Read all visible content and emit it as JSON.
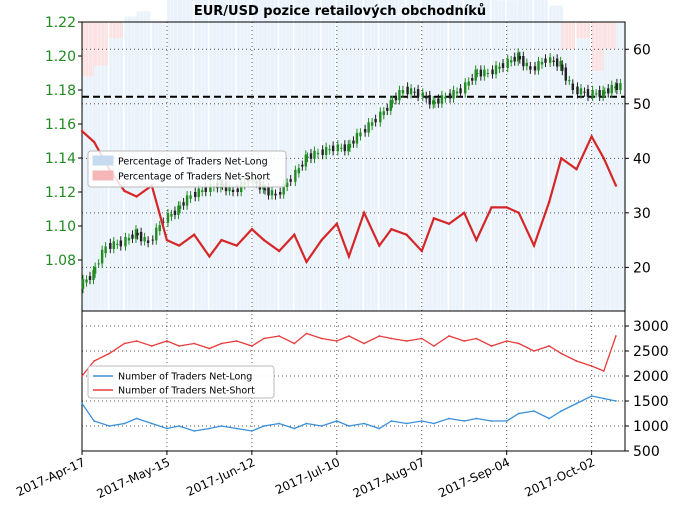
{
  "chart_data": [
    {
      "type": "line",
      "title": "EUR/USD pozice retailových obchodníků",
      "x_dates": [
        "2017-04-17",
        "2017-04-21",
        "2017-04-26",
        "2017-05-01",
        "2017-05-05",
        "2017-05-10",
        "2017-05-15",
        "2017-05-19",
        "2017-05-24",
        "2017-05-29",
        "2017-06-02",
        "2017-06-07",
        "2017-06-12",
        "2017-06-16",
        "2017-06-21",
        "2017-06-26",
        "2017-06-30",
        "2017-07-05",
        "2017-07-10",
        "2017-07-14",
        "2017-07-19",
        "2017-07-24",
        "2017-07-28",
        "2017-08-02",
        "2017-08-07",
        "2017-08-11",
        "2017-08-16",
        "2017-08-21",
        "2017-08-25",
        "2017-08-30",
        "2017-09-04",
        "2017-09-08",
        "2017-09-13",
        "2017-09-18",
        "2017-09-22",
        "2017-09-27",
        "2017-10-02",
        "2017-10-06",
        "2017-10-10"
      ],
      "x_tick_labels": [
        "2017-Apr-17",
        "2017-May-15",
        "2017-Jun-12",
        "2017-Jul-10",
        "2017-Aug-07",
        "2017-Sep-04",
        "2017-Oct-02"
      ],
      "left_axis": {
        "ticks": [
          "1.08",
          "1.10",
          "1.12",
          "1.14",
          "1.16",
          "1.18",
          "1.20",
          "1.22"
        ],
        "ylim": [
          1.05,
          1.22
        ],
        "color": "#228b22"
      },
      "right_axis": {
        "ticks": [
          "20",
          "30",
          "40",
          "50",
          "60"
        ],
        "ylim": [
          12,
          65
        ]
      },
      "reference_line": 1.176,
      "series": [
        {
          "name": "EUR/USD",
          "kind": "candlestick",
          "color": "#228b22",
          "values": [
            1.065,
            1.072,
            1.088,
            1.09,
            1.096,
            1.09,
            1.104,
            1.11,
            1.118,
            1.122,
            1.125,
            1.12,
            1.128,
            1.122,
            1.118,
            1.128,
            1.14,
            1.143,
            1.146,
            1.146,
            1.155,
            1.163,
            1.172,
            1.18,
            1.178,
            1.172,
            1.176,
            1.18,
            1.19,
            1.19,
            1.195,
            1.2,
            1.192,
            1.198,
            1.195,
            1.18,
            1.178,
            1.178,
            1.182
          ]
        },
        {
          "name": "Percentage of Traders Net-Short",
          "kind": "line",
          "color": "#d62728",
          "axis": "right",
          "values": [
            45,
            43,
            38,
            34,
            33,
            35,
            25,
            24,
            26,
            22,
            25,
            24,
            27,
            25,
            23,
            26,
            21,
            25,
            28,
            22,
            30,
            24,
            27,
            26,
            23,
            29,
            28,
            30,
            25,
            31,
            31,
            30,
            24,
            32,
            40,
            38,
            44,
            40,
            35
          ]
        }
      ],
      "legend": {
        "placement": "center-left",
        "entries": [
          "Percentage of Traders Net-Long",
          "Percentage of Traders Net-Short"
        ],
        "colors": [
          "#c6dbef",
          "#f4b6b6"
        ]
      },
      "grid": true
    },
    {
      "type": "line",
      "right_axis": {
        "ticks": [
          "500",
          "1000",
          "1500",
          "2000",
          "2500",
          "3000"
        ],
        "ylim": [
          500,
          3300
        ]
      },
      "series": [
        {
          "name": "Number of Traders Net-Long",
          "color": "#3a8fd9",
          "values": [
            1450,
            1100,
            1000,
            1050,
            1150,
            1050,
            950,
            1000,
            900,
            950,
            1000,
            950,
            900,
            1000,
            1050,
            950,
            1050,
            1000,
            1100,
            1000,
            1050,
            950,
            1100,
            1050,
            1100,
            1050,
            1150,
            1100,
            1150,
            1100,
            1100,
            1250,
            1300,
            1150,
            1300,
            1450,
            1600,
            1550,
            1500
          ]
        },
        {
          "name": "Number of Traders Net-Short",
          "color": "#e83b3b",
          "values": [
            2000,
            2300,
            2450,
            2650,
            2700,
            2600,
            2700,
            2600,
            2650,
            2550,
            2650,
            2700,
            2600,
            2750,
            2800,
            2650,
            2850,
            2750,
            2700,
            2800,
            2650,
            2800,
            2750,
            2700,
            2750,
            2600,
            2800,
            2700,
            2750,
            2600,
            2700,
            2650,
            2500,
            2600,
            2450,
            2300,
            2200,
            2100,
            2800
          ]
        }
      ],
      "legend": {
        "placement": "center-left",
        "entries": [
          "Number of Traders Net-Long",
          "Number of Traders Net-Short"
        ]
      },
      "grid": true
    }
  ]
}
